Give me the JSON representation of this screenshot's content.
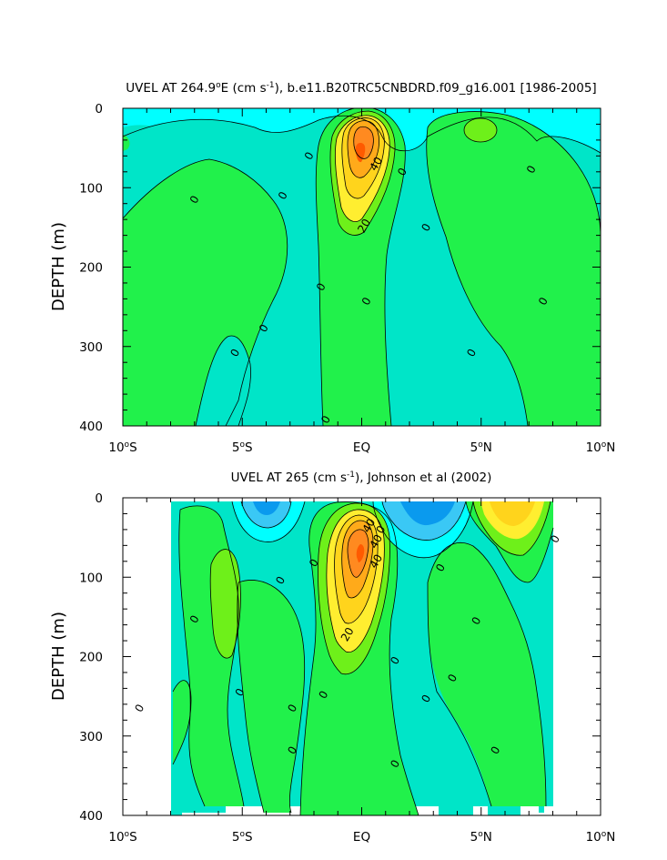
{
  "colors": {
    "cyan": "#00ffff",
    "teal": "#00e5c8",
    "skyblue": "#3ac8f5",
    "blue": "#0a9aee",
    "green": "#21f14b",
    "lightgreen": "#6ef01a",
    "yellow": "#ffee30",
    "gold": "#ffd41c",
    "orange": "#ffaa1a",
    "darkorange": "#ff8a20",
    "red": "#ff5a00"
  },
  "chart_data": [
    {
      "type": "contour",
      "title_main": "UVEL AT 264.9",
      "title_deg": "o",
      "title_post": "E (cm s",
      "title_exp": "-1",
      "title_tail": "), b.e11.B20TRC5CNBDRD.f09_g16.001 [1986-2005]",
      "ylabel": "DEPTH (m)",
      "xlim": [
        -10,
        10
      ],
      "ylim": [
        400,
        0
      ],
      "x_ticks": [
        {
          "value": -10,
          "num": "10",
          "hemi": "S"
        },
        {
          "value": -5,
          "num": "5",
          "hemi": "S"
        },
        {
          "value": 0,
          "num": "EQ",
          "hemi": ""
        },
        {
          "value": 5,
          "num": "5",
          "hemi": "N"
        },
        {
          "value": 10,
          "num": "10",
          "hemi": "N"
        }
      ],
      "y_ticks": [
        "0",
        "100",
        "200",
        "300",
        "400"
      ],
      "core": {
        "lat": 0,
        "depth": 75,
        "max_cm_s": 60
      },
      "contour_labels": [
        {
          "lat": -7.0,
          "depth": 115,
          "text": "0"
        },
        {
          "lat": -3.3,
          "depth": 110,
          "text": "0"
        },
        {
          "lat": -2.2,
          "depth": 60,
          "text": "0"
        },
        {
          "lat": 1.7,
          "depth": 80,
          "text": "0"
        },
        {
          "lat": 0.6,
          "depth": 70,
          "text": "40"
        },
        {
          "lat": 0.1,
          "depth": 148,
          "text": "20"
        },
        {
          "lat": 2.7,
          "depth": 150,
          "text": "0"
        },
        {
          "lat": 7.1,
          "depth": 77,
          "text": "0"
        },
        {
          "lat": -1.7,
          "depth": 225,
          "text": "0"
        },
        {
          "lat": 0.2,
          "depth": 243,
          "text": "0"
        },
        {
          "lat": 7.6,
          "depth": 243,
          "text": "0"
        },
        {
          "lat": -4.1,
          "depth": 277,
          "text": "0"
        },
        {
          "lat": -5.3,
          "depth": 308,
          "text": "0"
        },
        {
          "lat": 4.6,
          "depth": 308,
          "text": "0"
        },
        {
          "lat": -1.5,
          "depth": 392,
          "text": "0"
        }
      ]
    },
    {
      "type": "contour",
      "title_main": "UVEL AT 265 (cm s",
      "title_exp": "-1",
      "title_tail": "), Johnson et al (2002)",
      "ylabel": "DEPTH (m)",
      "xlim": [
        -10,
        10
      ],
      "ylim": [
        400,
        0
      ],
      "x_ticks": [
        {
          "value": -10,
          "num": "10",
          "hemi": "S"
        },
        {
          "value": -5,
          "num": "5",
          "hemi": "S"
        },
        {
          "value": 0,
          "num": "EQ",
          "hemi": ""
        },
        {
          "value": 5,
          "num": "5",
          "hemi": "N"
        },
        {
          "value": 10,
          "num": "10",
          "hemi": "N"
        }
      ],
      "y_ticks": [
        "0",
        "100",
        "200",
        "300",
        "400"
      ],
      "core": {
        "lat": 0,
        "depth": 70,
        "max_cm_s": 60
      },
      "contour_labels": [
        {
          "lat": 0.3,
          "depth": 35,
          "text": "40"
        },
        {
          "lat": 0.8,
          "depth": 40,
          "text": "0"
        },
        {
          "lat": 0.6,
          "depth": 55,
          "text": "40"
        },
        {
          "lat": 0.6,
          "depth": 80,
          "text": "40"
        },
        {
          "lat": -2.0,
          "depth": 82,
          "text": "0"
        },
        {
          "lat": -3.4,
          "depth": 104,
          "text": "0"
        },
        {
          "lat": 3.3,
          "depth": 88,
          "text": "0"
        },
        {
          "lat": 8.1,
          "depth": 52,
          "text": "0"
        },
        {
          "lat": -7.0,
          "depth": 153,
          "text": "0"
        },
        {
          "lat": -0.6,
          "depth": 172,
          "text": "20"
        },
        {
          "lat": 4.8,
          "depth": 155,
          "text": "0"
        },
        {
          "lat": 1.4,
          "depth": 205,
          "text": "0"
        },
        {
          "lat": 3.8,
          "depth": 227,
          "text": "0"
        },
        {
          "lat": -5.1,
          "depth": 245,
          "text": "0"
        },
        {
          "lat": -1.6,
          "depth": 248,
          "text": "0"
        },
        {
          "lat": 2.7,
          "depth": 253,
          "text": "0"
        },
        {
          "lat": -9.3,
          "depth": 265,
          "text": "0"
        },
        {
          "lat": -2.9,
          "depth": 265,
          "text": "0"
        },
        {
          "lat": -2.9,
          "depth": 318,
          "text": "0"
        },
        {
          "lat": 5.6,
          "depth": 318,
          "text": "0"
        },
        {
          "lat": 1.4,
          "depth": 335,
          "text": "0"
        }
      ]
    }
  ]
}
